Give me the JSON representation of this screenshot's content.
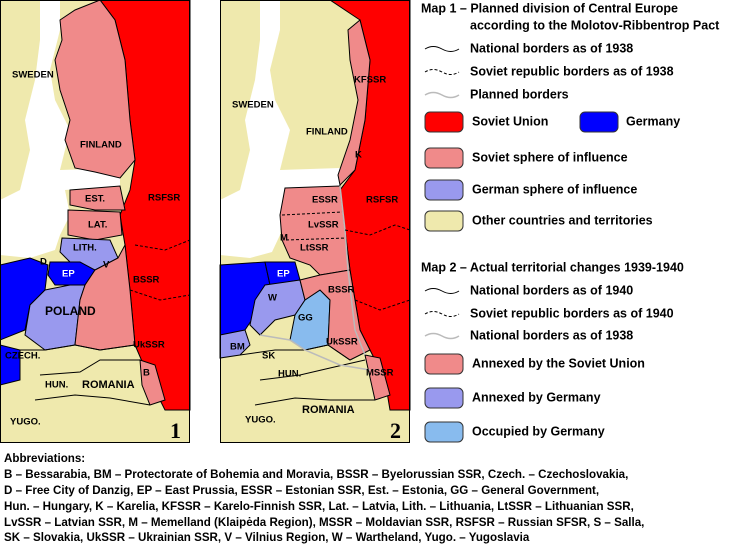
{
  "map1": {
    "labels": [
      "SWEDEN",
      "FINLAND",
      "EST.",
      "LAT.",
      "LITH.",
      "D",
      "EP",
      "V",
      "POLAND",
      "RSFSR",
      "BSSR",
      "UkSSR",
      "CZECH.",
      "HUN.",
      "ROMANIA",
      "YUGO.",
      "B"
    ],
    "number": "1"
  },
  "map2": {
    "labels": [
      "SWEDEN",
      "FINLAND",
      "KFSSR",
      "K",
      "ESSR",
      "RSFSR",
      "LvSSR",
      "M",
      "LtSSR",
      "EP",
      "W",
      "GG",
      "BSSR",
      "BM",
      "SK",
      "HUN.",
      "UkSSR",
      "MSSR",
      "ROMANIA",
      "YUGO."
    ],
    "number": "2"
  },
  "legend": {
    "map1_title": [
      "Map 1 – Planned division of Central Europe",
      "according to the Molotov-Ribbentrop Pact"
    ],
    "map1_lines": [
      "National borders as of 1938",
      "Soviet republic borders as of 1938",
      "Planned borders"
    ],
    "map1_areas": [
      "Soviet Union",
      "Germany",
      "Soviet sphere of influence",
      "German sphere of influence",
      "Other countries and territories"
    ],
    "map2_title": "Map 2 – Actual territorial changes 1939-1940",
    "map2_lines": [
      "National borders as of 1940",
      "Soviet republic borders as of 1940",
      "National borders as of 1938"
    ],
    "map2_areas": [
      "Annexed by the Soviet Union",
      "Annexed by Germany",
      "Occupied by Germany"
    ]
  },
  "abbreviations": {
    "heading": "Abbreviations:",
    "lines": [
      "B – Bessarabia, BM – Protectorate of Bohemia and Moravia, BSSR – Byelorussian SSR, Czech. – Czechoslovakia,",
      "D – Free City of Danzig, EP – East Prussia, ESSR – Estonian SSR, Est. – Estonia, GG – General Government,",
      "Hun. – Hungary, K – Karelia, KFSSR – Karelo-Finnish SSR, Lat. – Latvia, Lith. – Lithuania, LtSSR – Lithuanian SSR,",
      "LvSSR – Latvian SSR, M – Memelland (Klaipėda Region), MSSR – Moldavian SSR, RSFSR – Russian SFSR, S – Salla,",
      "SK – Slovakia, UkSSR – Ukrainian SSR, V – Vilnius Region, W – Wartheland, Yugo. – Yugoslavia"
    ]
  }
}
